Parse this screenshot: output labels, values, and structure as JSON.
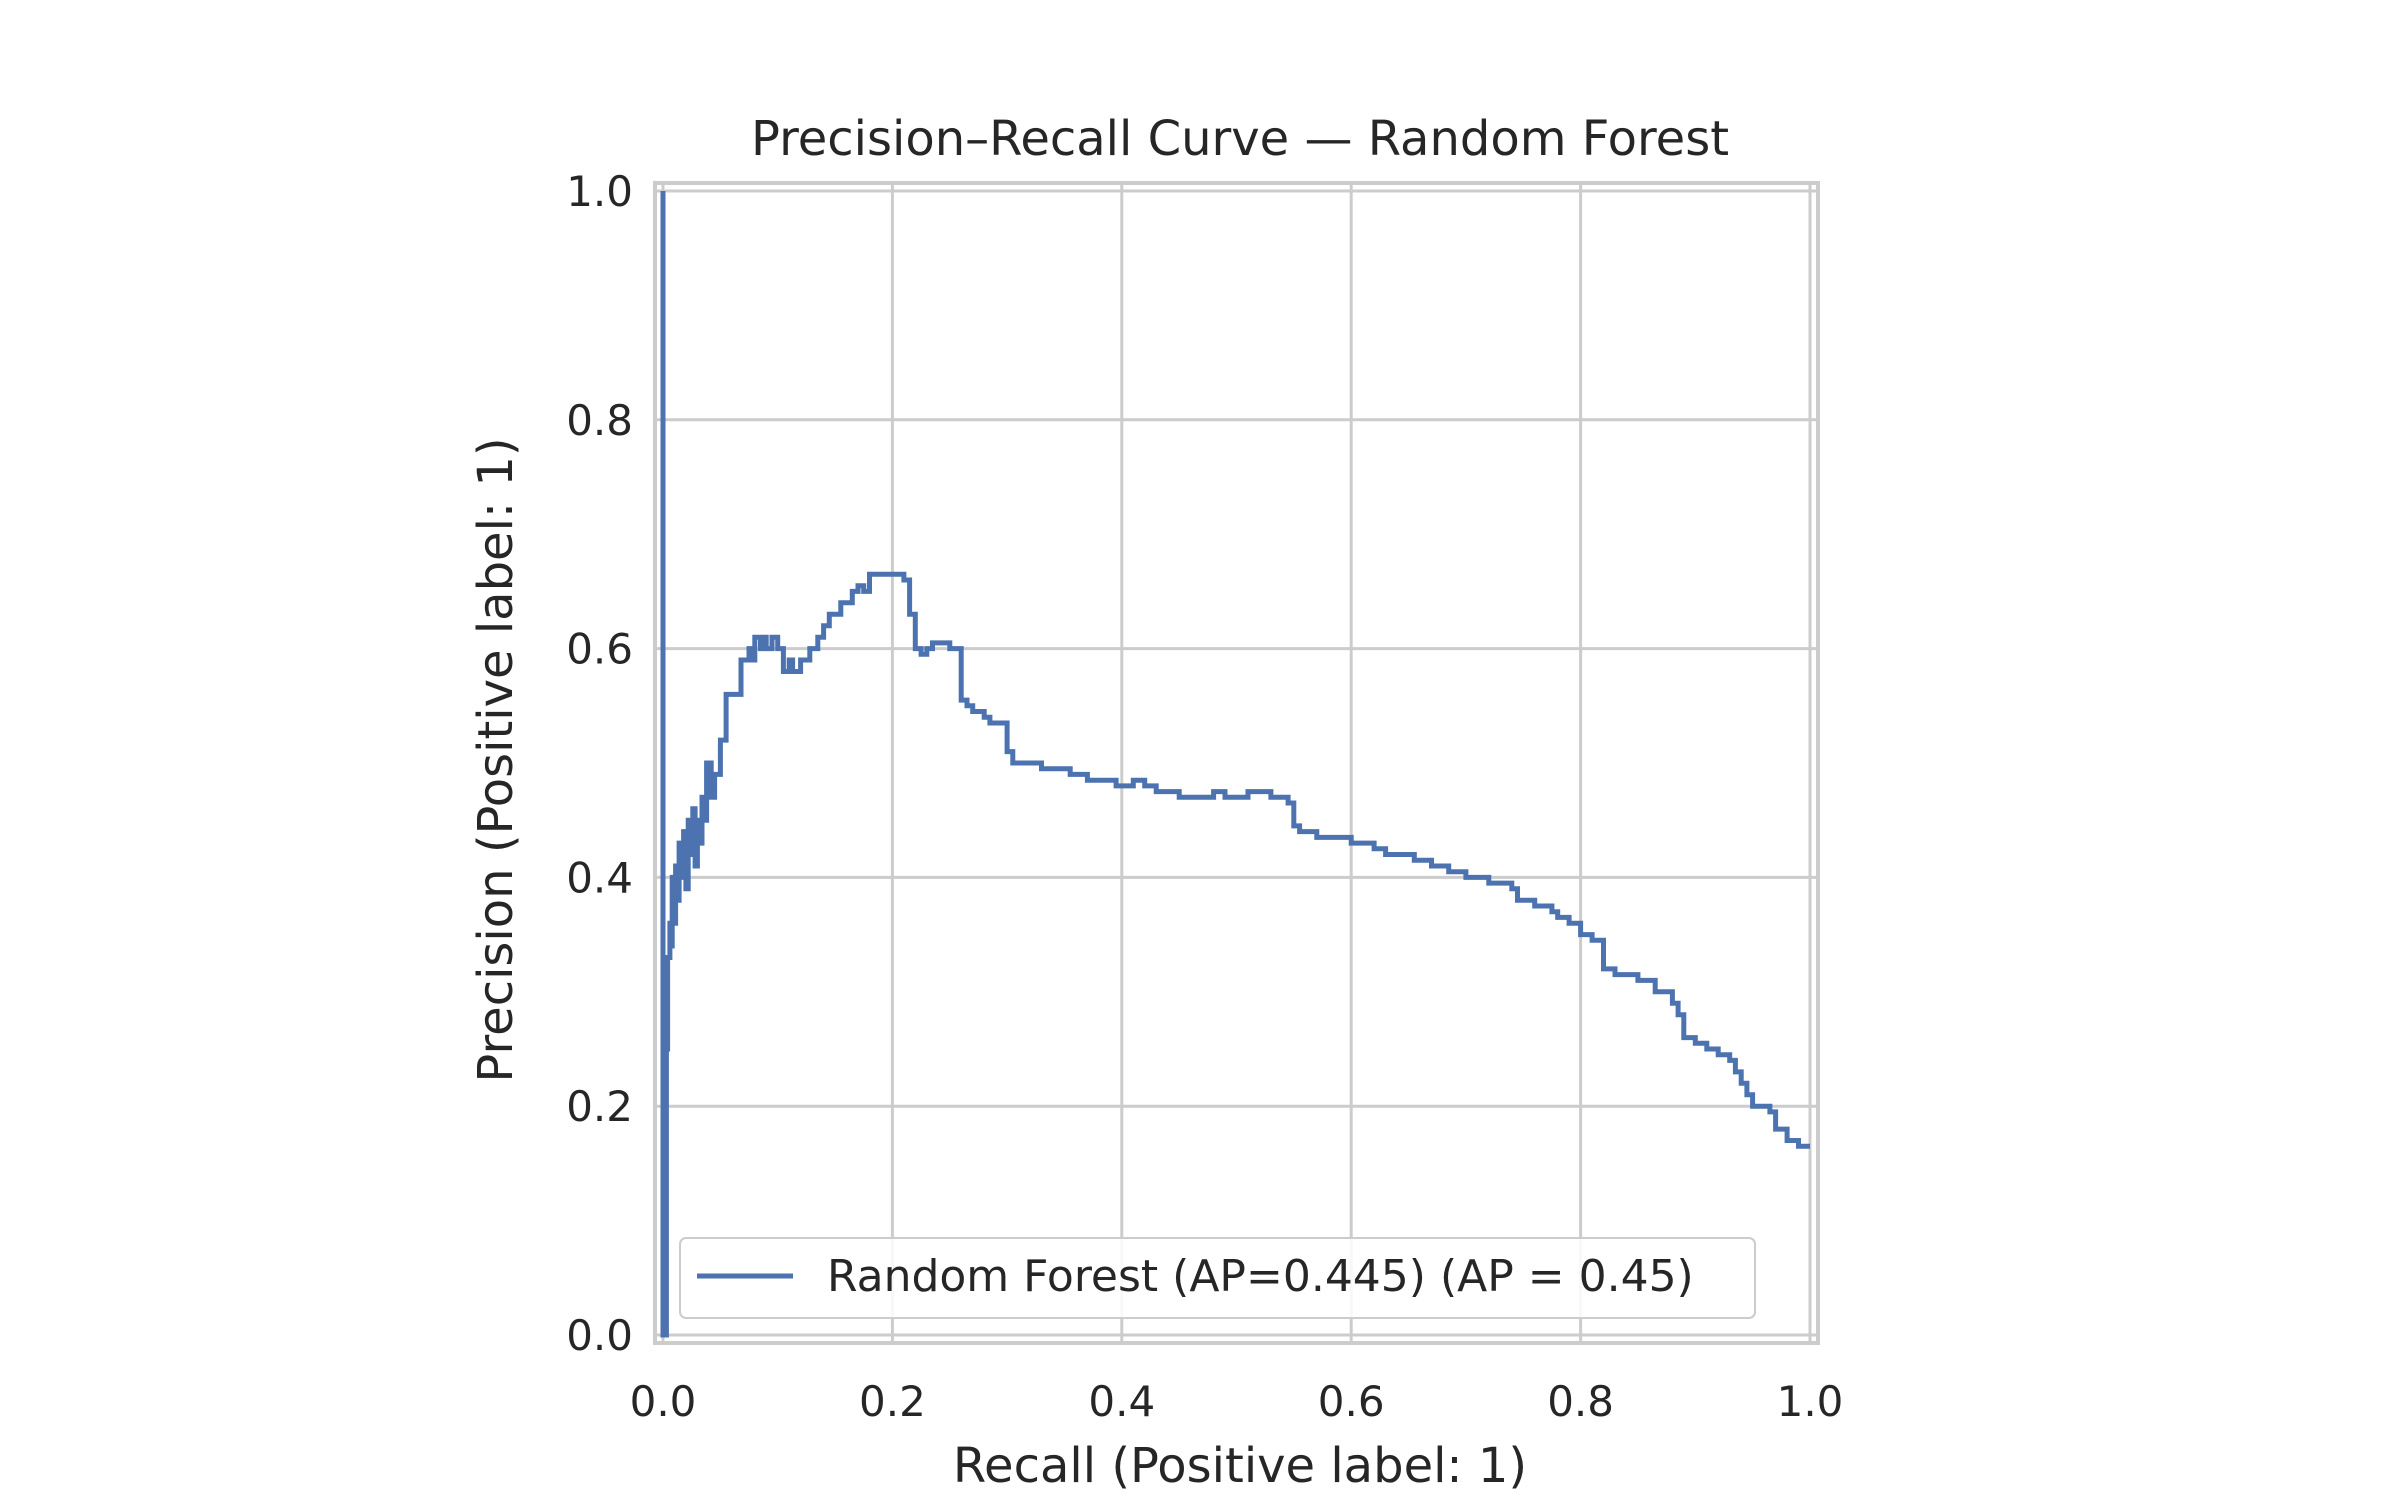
{
  "chart_data": {
    "type": "line",
    "title": "Precision–Recall Curve — Random Forest",
    "xlabel": "Recall (Positive label: 1)",
    "ylabel": "Precision (Positive label: 1)",
    "xlim": [
      0.0,
      1.0
    ],
    "ylim": [
      0.0,
      1.0
    ],
    "xticks": [
      "0.0",
      "0.2",
      "0.4",
      "0.6",
      "0.8",
      "1.0"
    ],
    "yticks": [
      "0.0",
      "0.2",
      "0.4",
      "0.6",
      "0.8",
      "1.0"
    ],
    "grid": true,
    "legend_position": "lower-right",
    "series": [
      {
        "name": "Random Forest (AP=0.445) (AP = 0.45)",
        "color": "#4c72b0",
        "drawstyle": "steps-post",
        "points": [
          [
            0.0,
            1.0
          ],
          [
            0.0,
            0.0
          ],
          [
            0.003,
            0.0
          ],
          [
            0.003,
            0.25
          ],
          [
            0.004,
            0.33
          ],
          [
            0.006,
            0.36
          ],
          [
            0.007,
            0.34
          ],
          [
            0.008,
            0.4
          ],
          [
            0.01,
            0.36
          ],
          [
            0.011,
            0.41
          ],
          [
            0.013,
            0.38
          ],
          [
            0.014,
            0.43
          ],
          [
            0.016,
            0.4
          ],
          [
            0.018,
            0.44
          ],
          [
            0.02,
            0.39
          ],
          [
            0.022,
            0.45
          ],
          [
            0.024,
            0.42
          ],
          [
            0.026,
            0.46
          ],
          [
            0.028,
            0.41
          ],
          [
            0.03,
            0.45
          ],
          [
            0.032,
            0.43
          ],
          [
            0.034,
            0.47
          ],
          [
            0.036,
            0.45
          ],
          [
            0.038,
            0.5
          ],
          [
            0.042,
            0.47
          ],
          [
            0.045,
            0.49
          ],
          [
            0.05,
            0.52
          ],
          [
            0.055,
            0.56
          ],
          [
            0.065,
            0.56
          ],
          [
            0.068,
            0.59
          ],
          [
            0.075,
            0.6
          ],
          [
            0.078,
            0.59
          ],
          [
            0.08,
            0.61
          ],
          [
            0.085,
            0.6
          ],
          [
            0.088,
            0.61
          ],
          [
            0.09,
            0.6
          ],
          [
            0.095,
            0.61
          ],
          [
            0.1,
            0.6
          ],
          [
            0.105,
            0.58
          ],
          [
            0.11,
            0.59
          ],
          [
            0.113,
            0.58
          ],
          [
            0.12,
            0.59
          ],
          [
            0.128,
            0.6
          ],
          [
            0.135,
            0.61
          ],
          [
            0.14,
            0.62
          ],
          [
            0.145,
            0.63
          ],
          [
            0.15,
            0.63
          ],
          [
            0.155,
            0.64
          ],
          [
            0.16,
            0.64
          ],
          [
            0.165,
            0.65
          ],
          [
            0.17,
            0.655
          ],
          [
            0.175,
            0.65
          ],
          [
            0.18,
            0.665
          ],
          [
            0.195,
            0.665
          ],
          [
            0.2,
            0.665
          ],
          [
            0.21,
            0.66
          ],
          [
            0.215,
            0.63
          ],
          [
            0.22,
            0.6
          ],
          [
            0.225,
            0.595
          ],
          [
            0.23,
            0.6
          ],
          [
            0.235,
            0.605
          ],
          [
            0.245,
            0.605
          ],
          [
            0.25,
            0.6
          ],
          [
            0.26,
            0.555
          ],
          [
            0.265,
            0.55
          ],
          [
            0.27,
            0.545
          ],
          [
            0.275,
            0.545
          ],
          [
            0.28,
            0.54
          ],
          [
            0.285,
            0.535
          ],
          [
            0.29,
            0.535
          ],
          [
            0.3,
            0.51
          ],
          [
            0.305,
            0.5
          ],
          [
            0.32,
            0.5
          ],
          [
            0.33,
            0.495
          ],
          [
            0.345,
            0.495
          ],
          [
            0.355,
            0.49
          ],
          [
            0.365,
            0.49
          ],
          [
            0.37,
            0.485
          ],
          [
            0.39,
            0.485
          ],
          [
            0.395,
            0.48
          ],
          [
            0.41,
            0.485
          ],
          [
            0.42,
            0.48
          ],
          [
            0.43,
            0.475
          ],
          [
            0.445,
            0.475
          ],
          [
            0.45,
            0.47
          ],
          [
            0.48,
            0.475
          ],
          [
            0.49,
            0.47
          ],
          [
            0.51,
            0.475
          ],
          [
            0.53,
            0.47
          ],
          [
            0.545,
            0.465
          ],
          [
            0.55,
            0.445
          ],
          [
            0.555,
            0.44
          ],
          [
            0.57,
            0.435
          ],
          [
            0.59,
            0.435
          ],
          [
            0.6,
            0.43
          ],
          [
            0.62,
            0.425
          ],
          [
            0.63,
            0.42
          ],
          [
            0.65,
            0.42
          ],
          [
            0.655,
            0.415
          ],
          [
            0.67,
            0.41
          ],
          [
            0.685,
            0.405
          ],
          [
            0.7,
            0.4
          ],
          [
            0.72,
            0.395
          ],
          [
            0.74,
            0.39
          ],
          [
            0.745,
            0.38
          ],
          [
            0.76,
            0.375
          ],
          [
            0.775,
            0.37
          ],
          [
            0.78,
            0.365
          ],
          [
            0.79,
            0.36
          ],
          [
            0.8,
            0.35
          ],
          [
            0.81,
            0.345
          ],
          [
            0.815,
            0.345
          ],
          [
            0.82,
            0.32
          ],
          [
            0.83,
            0.315
          ],
          [
            0.845,
            0.315
          ],
          [
            0.85,
            0.31
          ],
          [
            0.86,
            0.31
          ],
          [
            0.865,
            0.3
          ],
          [
            0.88,
            0.29
          ],
          [
            0.885,
            0.28
          ],
          [
            0.89,
            0.26
          ],
          [
            0.9,
            0.255
          ],
          [
            0.91,
            0.25
          ],
          [
            0.92,
            0.245
          ],
          [
            0.93,
            0.24
          ],
          [
            0.935,
            0.23
          ],
          [
            0.94,
            0.22
          ],
          [
            0.945,
            0.21
          ],
          [
            0.95,
            0.2
          ],
          [
            0.965,
            0.195
          ],
          [
            0.97,
            0.18
          ],
          [
            0.98,
            0.17
          ],
          [
            0.99,
            0.165
          ],
          [
            1.0,
            0.165
          ]
        ]
      }
    ]
  }
}
